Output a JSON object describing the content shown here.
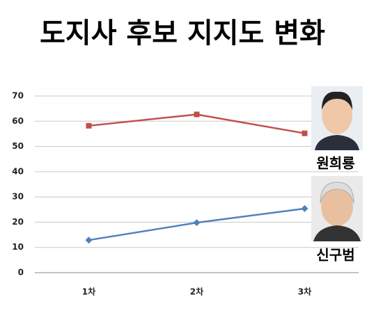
{
  "chart_data": {
    "type": "line",
    "title": "도지사 후보 지지도 변화",
    "categories": [
      "1차",
      "2차",
      "3차"
    ],
    "series": [
      {
        "name": "원희룡",
        "color": "#c0504d",
        "values": [
          58.2,
          62.7,
          55.2
        ]
      },
      {
        "name": "신구범",
        "color": "#4f81bd",
        "values": [
          12.9,
          19.8,
          25.4
        ]
      }
    ],
    "ylim": [
      0,
      70
    ],
    "yticks": [
      0,
      10,
      20,
      30,
      40,
      50,
      60,
      70
    ],
    "grid": true
  }
}
